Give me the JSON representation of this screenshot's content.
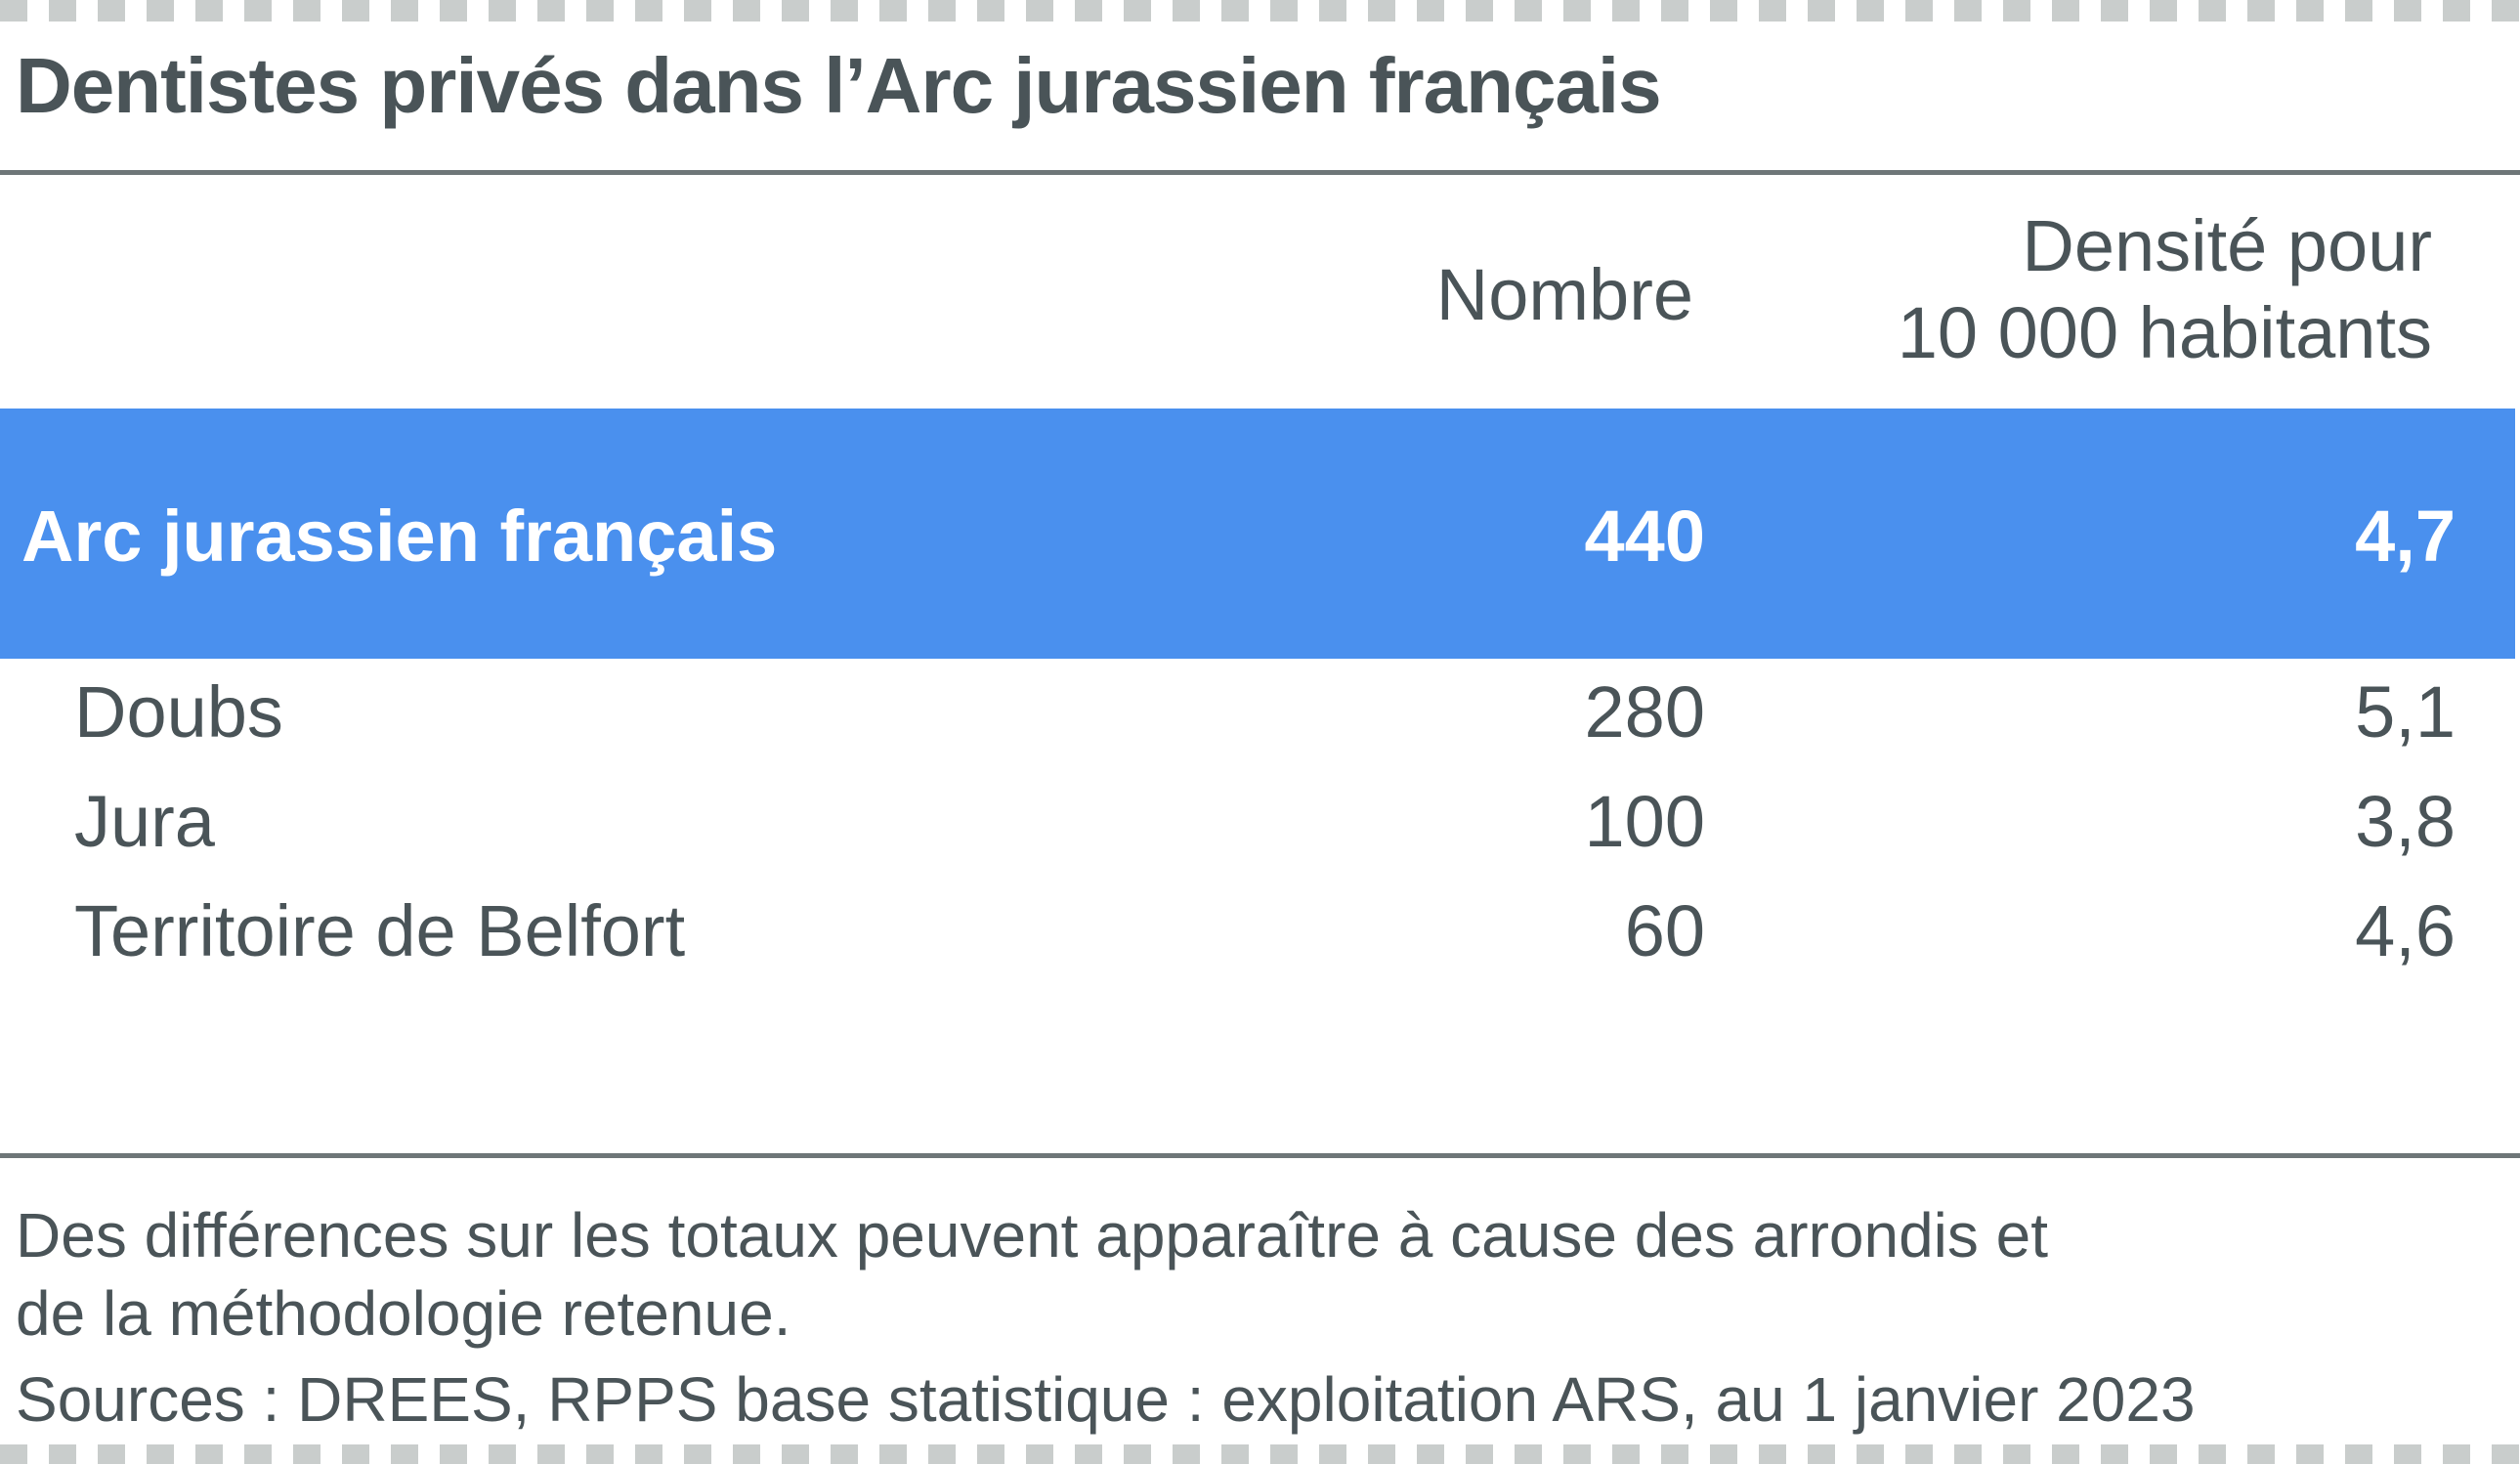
{
  "title": "Dentistes privés dans l’Arc jurassien français",
  "columns": {
    "nombre": "Nombre",
    "densite_line1": "Densité pour",
    "densite_line2": "10 000 habitants"
  },
  "colors": {
    "highlight": "#4a90ee",
    "text": "#4a5458",
    "rule": "#6e7678",
    "dash": "#c9cdcc"
  },
  "total_row": {
    "label": "Arc jurassien français",
    "nombre": "440",
    "densite": "4,7"
  },
  "rows": [
    {
      "label": "Doubs",
      "nombre": "280",
      "densite": "5,1"
    },
    {
      "label": "Jura",
      "nombre": "100",
      "densite": "3,8"
    },
    {
      "label": "Territoire de Belfort",
      "nombre": "60",
      "densite": "4,6"
    }
  ],
  "note_line1": "Des différences sur les totaux peuvent apparaître à cause des arrondis et",
  "note_line2": "de la méthodologie retenue.",
  "sources": "Sources : DREES, RPPS base statistique : exploitation ARS, au 1 janvier 2023"
}
